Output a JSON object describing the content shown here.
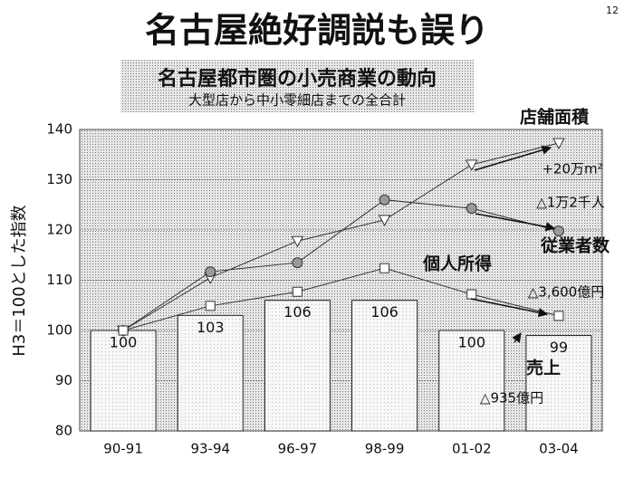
{
  "page_number": "12",
  "chart_data": {
    "type": "combo",
    "title": "名古屋絶好調説も誤り",
    "subtitle": "名古屋都市圏の小売商業の動向",
    "subtitle2": "大型店から中小零細店までの全合計",
    "y_label": "H3＝100とした指数",
    "categories": [
      "90-91",
      "93-94",
      "96-97",
      "98-99",
      "01-02",
      "03-04"
    ],
    "ylim": [
      80,
      140
    ],
    "yticks": [
      80,
      90,
      100,
      110,
      120,
      130,
      140
    ],
    "grid": true,
    "series": [
      {
        "name": "売上",
        "type": "bar",
        "color": "#f2f2f2",
        "values": [
          100,
          103,
          106,
          106,
          100,
          99
        ]
      },
      {
        "name": "店舗面積",
        "type": "line",
        "marker": "triangle-down",
        "color": "#333333",
        "values": [
          100,
          110.5,
          117.8,
          122,
          133,
          137.3
        ]
      },
      {
        "name": "従業者数",
        "type": "line",
        "marker": "circle",
        "color": "#333333",
        "values": [
          100,
          111.7,
          113.5,
          126,
          124.3,
          119.8
        ]
      },
      {
        "name": "個人所得",
        "type": "line",
        "marker": "square",
        "color": "#333333",
        "values": [
          100,
          104.9,
          107.7,
          112.4,
          107.2,
          102.9
        ]
      }
    ],
    "annotations": [
      "+20万m²",
      "△1万2千人",
      "△3,600億円",
      "△935億円"
    ]
  }
}
